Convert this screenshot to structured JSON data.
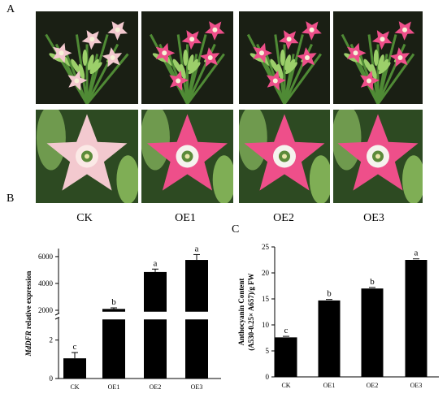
{
  "panels": {
    "a": "A",
    "b": "B",
    "c": "C"
  },
  "genotypes": [
    "CK",
    "OE1",
    "OE2",
    "OE3"
  ],
  "colors": {
    "ck_flower": "#f3c9cf",
    "oe_flower": "#ee4f8a",
    "leaf_green": "#4f8a35",
    "photo_bg": "#1a1f14",
    "bar": "#000000"
  },
  "chart_data": [
    {
      "type": "bar",
      "panel": "B",
      "categories": [
        "CK",
        "OE1",
        "OE2",
        "OE3"
      ],
      "values": [
        1.05,
        2100,
        4850,
        5750
      ],
      "errors": [
        0.3,
        80,
        220,
        400
      ],
      "significance": [
        "c",
        "b",
        "a",
        "a"
      ],
      "ylabel_italic": "MdDFR",
      "ylabel_rest": " relative expression",
      "broken_axis": true,
      "lower_ticks": [
        "0",
        "2"
      ],
      "upper_ticks": [
        "2000",
        "4000",
        "6000"
      ],
      "ylim_lower": [
        0,
        3
      ],
      "ylim_upper": [
        2000,
        6600
      ]
    },
    {
      "type": "bar",
      "panel": "C",
      "categories": [
        "CK",
        "OE1",
        "OE2",
        "OE3"
      ],
      "values": [
        7.6,
        14.7,
        17.0,
        22.5
      ],
      "errors": [
        0.2,
        0.2,
        0.2,
        0.2
      ],
      "significance": [
        "c",
        "b",
        "b",
        "a"
      ],
      "ylabel_line1": "Anthocyanin Content",
      "ylabel_line2": "(A530-0.25× A657)/g FW",
      "yticks": [
        "0",
        "5",
        "10",
        "15",
        "20",
        "25"
      ],
      "ylim": [
        0,
        25
      ]
    }
  ]
}
